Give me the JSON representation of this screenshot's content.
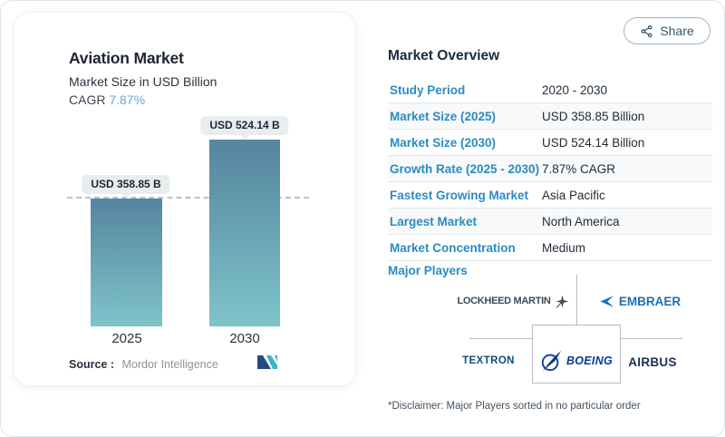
{
  "share": {
    "label": "Share"
  },
  "chart_card": {
    "title": "Aviation Market",
    "subtitle": "Market Size in USD Billion",
    "cagr_label": "CAGR",
    "cagr_value": "7.87%",
    "bars": [
      {
        "label": "2025",
        "badge": "USD 358.85 B",
        "value": 358.85
      },
      {
        "label": "2030",
        "badge": "USD 524.14 B",
        "value": 524.14
      }
    ],
    "source_label": "Source :",
    "source_value": "Mordor Intelligence"
  },
  "overview": {
    "title": "Market Overview",
    "rows": [
      {
        "label": "Study Period",
        "value": "2020 - 2030"
      },
      {
        "label": "Market Size (2025)",
        "value": "USD 358.85 Billion"
      },
      {
        "label": "Market Size (2030)",
        "value": "USD 524.14 Billion"
      },
      {
        "label": "Growth Rate (2025 - 2030)",
        "value": "7.87% CAGR"
      },
      {
        "label": "Fastest Growing Market",
        "value": "Asia Pacific"
      },
      {
        "label": "Largest Market",
        "value": "North America"
      },
      {
        "label": "Market Concentration",
        "value": "Medium"
      }
    ],
    "major_players_label": "Major Players",
    "players": [
      "LOCKHEED MARTIN",
      "EMBRAER",
      "TEXTRON",
      "BOEING",
      "AIRBUS"
    ],
    "disclaimer": "*Disclaimer: Major Players sorted in no particular order"
  },
  "chart_data": {
    "type": "bar",
    "title": "Aviation Market",
    "subtitle": "Market Size in USD Billion",
    "unit": "USD Billion",
    "cagr": "7.87%",
    "categories": [
      "2025",
      "2030"
    ],
    "values": [
      358.85,
      524.14
    ],
    "data_labels": [
      "USD 358.85 B",
      "USD 524.14 B"
    ],
    "reference_line_y": 358.85,
    "ylim": [
      0,
      560
    ],
    "grid": false,
    "legend": false,
    "source": "Mordor Intelligence"
  },
  "colors": {
    "label_blue": "#2a8bc2",
    "cagr_blue": "#6aa2ce",
    "bar_top": "#56859f",
    "bar_bottom": "#7fc4c9",
    "badge_bg": "#e9edef",
    "dashed_line": "#aec6d2",
    "text_dark": "#222d39",
    "share": "#33566d",
    "lockheed": "#3d4a59",
    "embraer": "#1a70b5",
    "textron": "#0f4e7c",
    "boeing": "#0a3896",
    "airbus": "#1d2f56",
    "mordor_navy": "#27487e",
    "mordor_teal": "#3db3c4"
  }
}
